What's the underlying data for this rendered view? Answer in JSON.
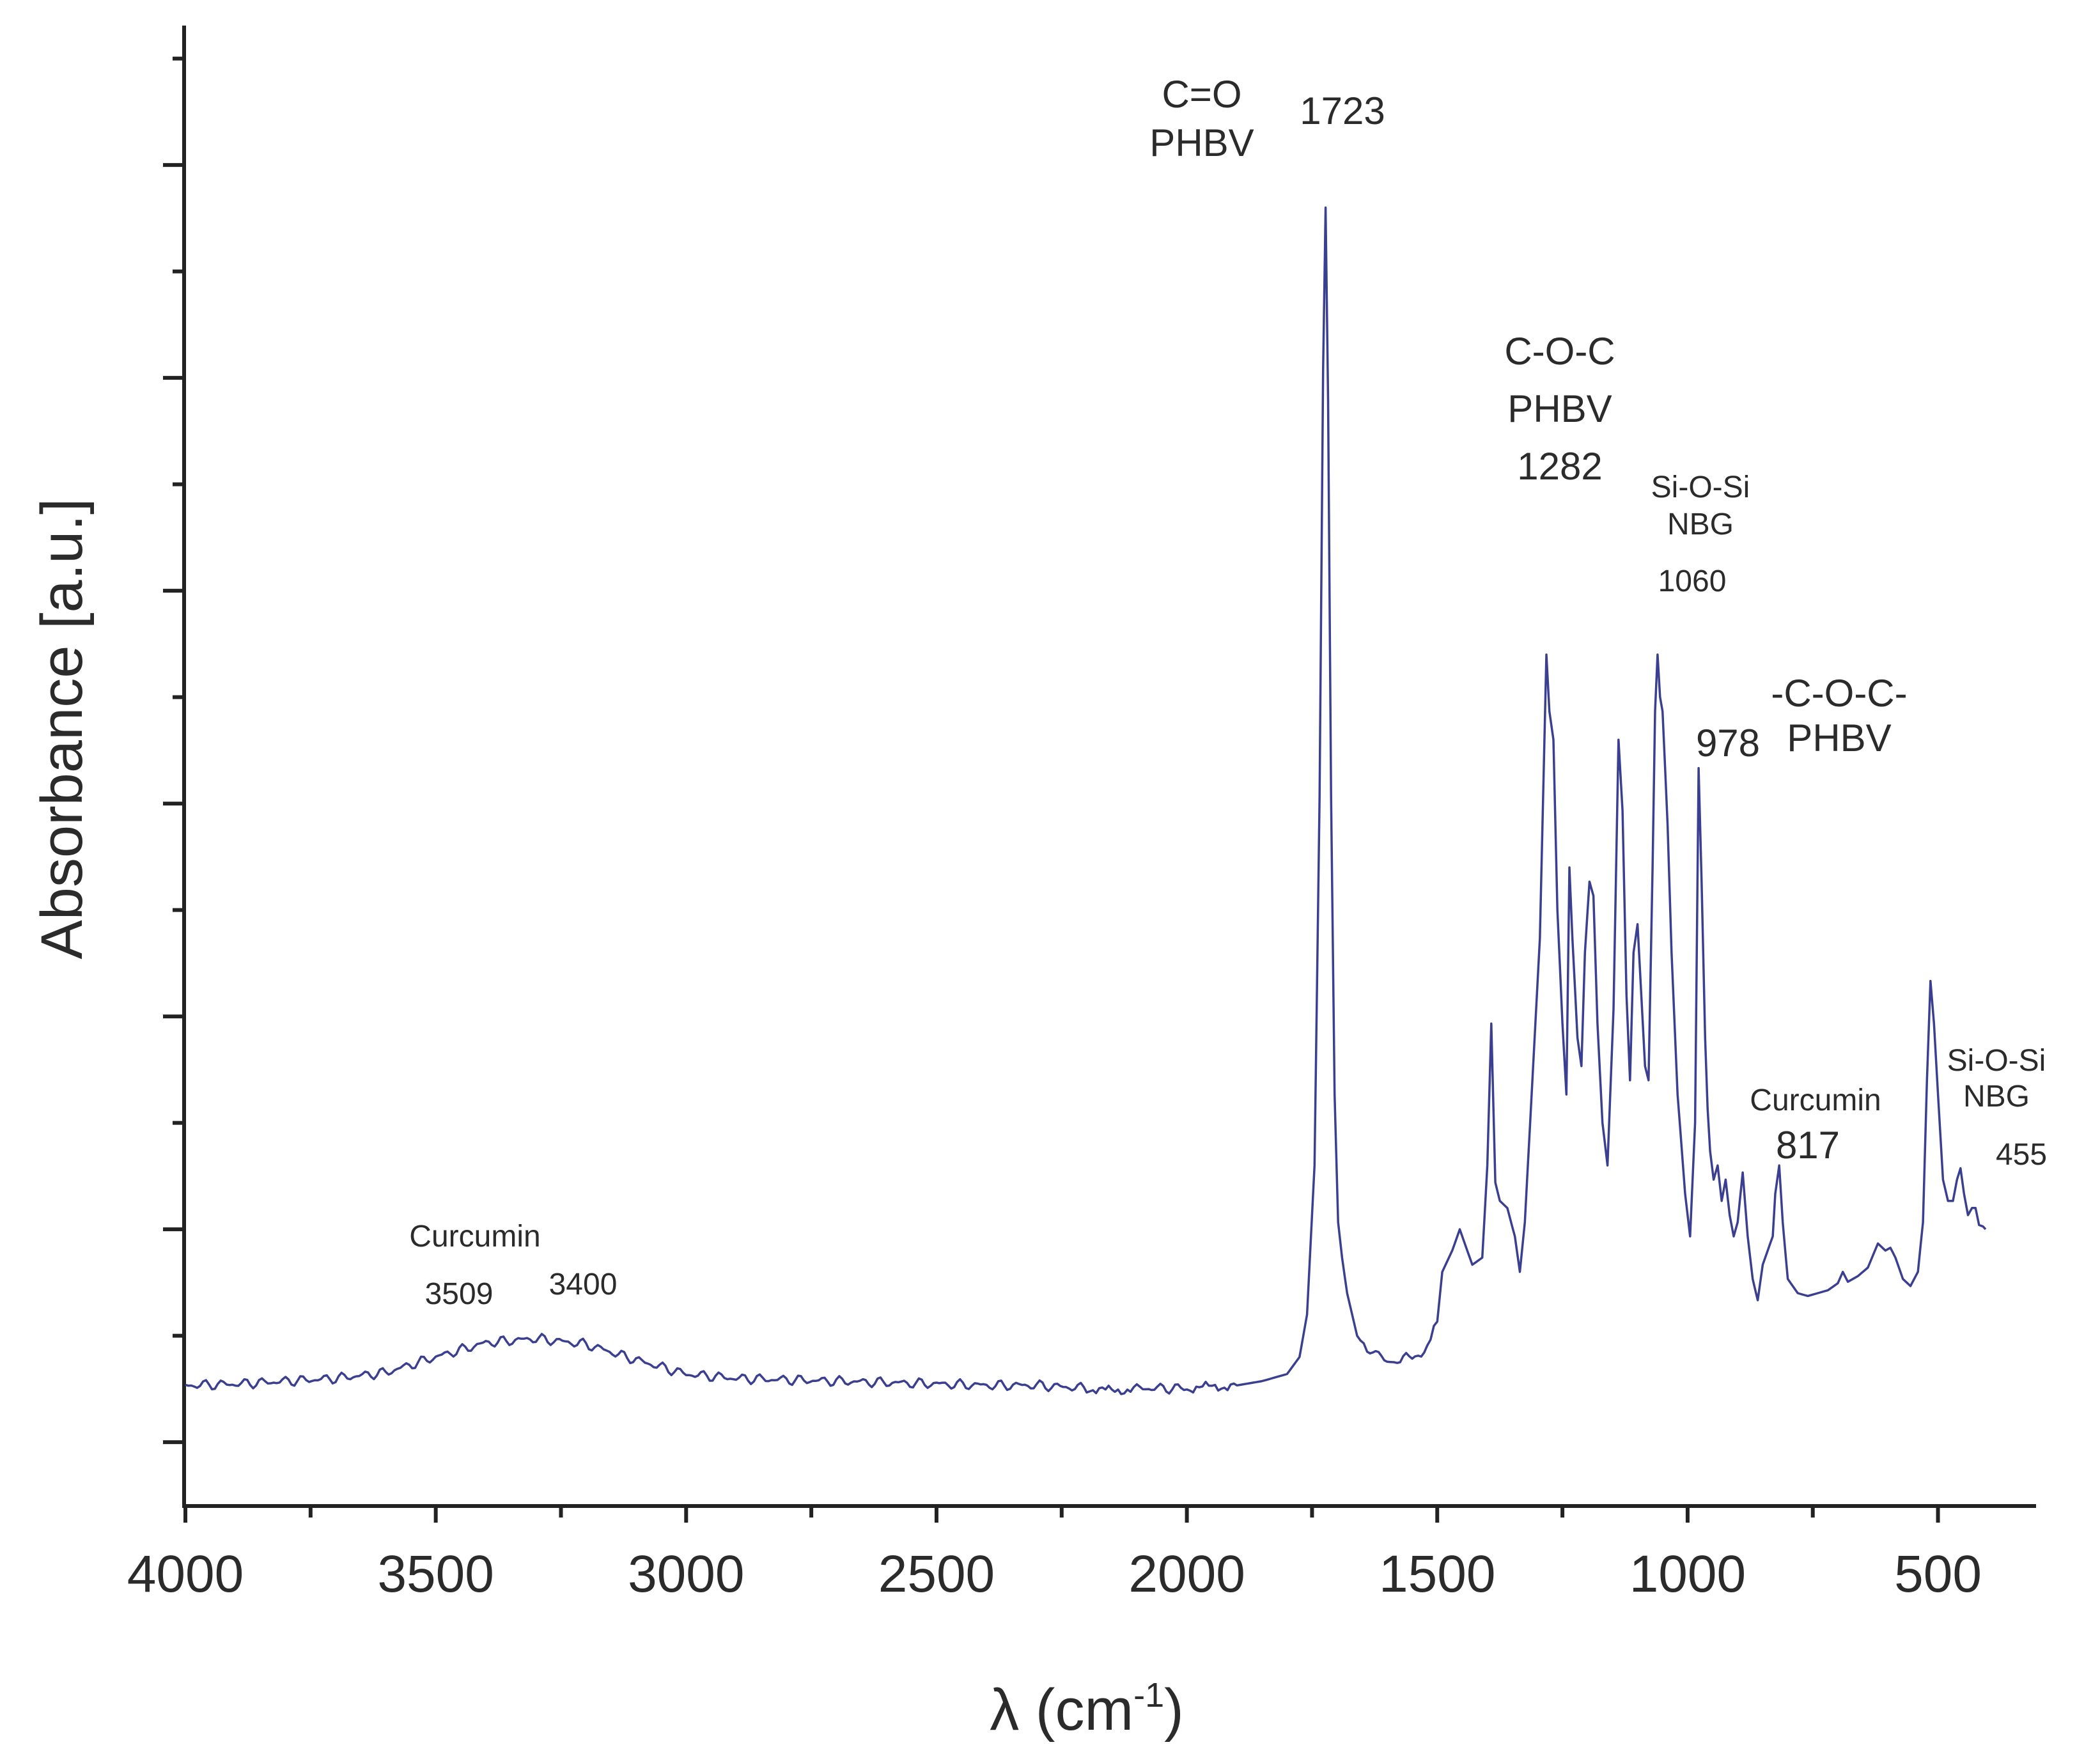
{
  "chart_data": {
    "type": "line",
    "title": "",
    "xlabel": "λ (cm",
    "xlabel_superscript": "-1",
    "xlabel_close": ")",
    "ylabel": "Absorbance [a.u.]",
    "xlim": [
      4000,
      330
    ],
    "ylim": [
      0,
      1.0
    ],
    "x_ticks": [
      4000,
      3500,
      3000,
      2500,
      2000,
      1500,
      1000,
      500
    ],
    "x_tick_labels": [
      "4000",
      "3500",
      "3000",
      "2500",
      "2000",
      "1500",
      "1000",
      "500"
    ],
    "y_tick_labels": [],
    "grid": false,
    "legend": "none",
    "series": [
      {
        "name": "Absorbance",
        "color": "#3b3f8f",
        "points": [
          [
            4000,
            0.085
          ],
          [
            3900,
            0.086
          ],
          [
            3800,
            0.088
          ],
          [
            3700,
            0.09
          ],
          [
            3600,
            0.094
          ],
          [
            3500,
            0.105
          ],
          [
            3400,
            0.115
          ],
          [
            3300,
            0.118
          ],
          [
            3200,
            0.114
          ],
          [
            3100,
            0.103
          ],
          [
            3000,
            0.093
          ],
          [
            2900,
            0.09
          ],
          [
            2800,
            0.089
          ],
          [
            2700,
            0.088
          ],
          [
            2600,
            0.087
          ],
          [
            2500,
            0.086
          ],
          [
            2400,
            0.085
          ],
          [
            2300,
            0.085
          ],
          [
            2200,
            0.083
          ],
          [
            2150,
            0.081
          ],
          [
            2100,
            0.083
          ],
          [
            2000,
            0.083
          ],
          [
            1950,
            0.084
          ],
          [
            1900,
            0.085
          ],
          [
            1850,
            0.088
          ],
          [
            1800,
            0.093
          ],
          [
            1775,
            0.105
          ],
          [
            1760,
            0.135
          ],
          [
            1745,
            0.24
          ],
          [
            1735,
            0.5
          ],
          [
            1728,
            0.8
          ],
          [
            1723,
            0.915
          ],
          [
            1718,
            0.78
          ],
          [
            1712,
            0.5
          ],
          [
            1705,
            0.29
          ],
          [
            1698,
            0.2
          ],
          [
            1690,
            0.175
          ],
          [
            1680,
            0.15
          ],
          [
            1660,
            0.12
          ],
          [
            1640,
            0.11
          ],
          [
            1600,
            0.104
          ],
          [
            1580,
            0.103
          ],
          [
            1550,
            0.105
          ],
          [
            1520,
            0.11
          ],
          [
            1500,
            0.13
          ],
          [
            1490,
            0.165
          ],
          [
            1470,
            0.18
          ],
          [
            1455,
            0.195
          ],
          [
            1445,
            0.185
          ],
          [
            1430,
            0.17
          ],
          [
            1410,
            0.175
          ],
          [
            1400,
            0.24
          ],
          [
            1392,
            0.34
          ],
          [
            1384,
            0.228
          ],
          [
            1375,
            0.215
          ],
          [
            1360,
            0.21
          ],
          [
            1345,
            0.19
          ],
          [
            1335,
            0.165
          ],
          [
            1325,
            0.2
          ],
          [
            1310,
            0.3
          ],
          [
            1295,
            0.4
          ],
          [
            1282,
            0.6
          ],
          [
            1276,
            0.56
          ],
          [
            1268,
            0.54
          ],
          [
            1260,
            0.42
          ],
          [
            1250,
            0.34
          ],
          [
            1242,
            0.29
          ],
          [
            1236,
            0.45
          ],
          [
            1230,
            0.4
          ],
          [
            1220,
            0.33
          ],
          [
            1212,
            0.31
          ],
          [
            1205,
            0.39
          ],
          [
            1196,
            0.44
          ],
          [
            1188,
            0.43
          ],
          [
            1180,
            0.34
          ],
          [
            1170,
            0.27
          ],
          [
            1160,
            0.24
          ],
          [
            1148,
            0.35
          ],
          [
            1138,
            0.54
          ],
          [
            1130,
            0.49
          ],
          [
            1122,
            0.36
          ],
          [
            1115,
            0.3
          ],
          [
            1108,
            0.39
          ],
          [
            1100,
            0.41
          ],
          [
            1094,
            0.37
          ],
          [
            1085,
            0.31
          ],
          [
            1078,
            0.3
          ],
          [
            1070,
            0.45
          ],
          [
            1065,
            0.56
          ],
          [
            1060,
            0.6
          ],
          [
            1055,
            0.57
          ],
          [
            1050,
            0.56
          ],
          [
            1045,
            0.52
          ],
          [
            1040,
            0.48
          ],
          [
            1032,
            0.39
          ],
          [
            1020,
            0.29
          ],
          [
            1005,
            0.22
          ],
          [
            995,
            0.19
          ],
          [
            985,
            0.27
          ],
          [
            978,
            0.52
          ],
          [
            972,
            0.44
          ],
          [
            965,
            0.33
          ],
          [
            960,
            0.28
          ],
          [
            955,
            0.25
          ],
          [
            948,
            0.23
          ],
          [
            940,
            0.24
          ],
          [
            932,
            0.215
          ],
          [
            924,
            0.23
          ],
          [
            916,
            0.205
          ],
          [
            908,
            0.19
          ],
          [
            900,
            0.2
          ],
          [
            890,
            0.235
          ],
          [
            880,
            0.19
          ],
          [
            870,
            0.16
          ],
          [
            860,
            0.145
          ],
          [
            850,
            0.17
          ],
          [
            840,
            0.18
          ],
          [
            830,
            0.19
          ],
          [
            825,
            0.22
          ],
          [
            817,
            0.24
          ],
          [
            810,
            0.2
          ],
          [
            800,
            0.16
          ],
          [
            780,
            0.15
          ],
          [
            760,
            0.148
          ],
          [
            740,
            0.15
          ],
          [
            720,
            0.152
          ],
          [
            700,
            0.157
          ],
          [
            690,
            0.165
          ],
          [
            680,
            0.158
          ],
          [
            660,
            0.162
          ],
          [
            640,
            0.168
          ],
          [
            620,
            0.185
          ],
          [
            605,
            0.18
          ],
          [
            595,
            0.182
          ],
          [
            585,
            0.175
          ],
          [
            570,
            0.16
          ],
          [
            555,
            0.155
          ],
          [
            540,
            0.165
          ],
          [
            530,
            0.2
          ],
          [
            522,
            0.3
          ],
          [
            515,
            0.37
          ],
          [
            508,
            0.34
          ],
          [
            500,
            0.29
          ],
          [
            490,
            0.23
          ],
          [
            480,
            0.215
          ],
          [
            470,
            0.215
          ],
          [
            462,
            0.23
          ],
          [
            455,
            0.238
          ],
          [
            448,
            0.22
          ],
          [
            440,
            0.205
          ],
          [
            432,
            0.21
          ],
          [
            425,
            0.21
          ],
          [
            418,
            0.198
          ],
          [
            410,
            0.197
          ],
          [
            405,
            0.195
          ]
        ]
      }
    ],
    "annotations": [
      {
        "lines": [
          "C=O",
          "PHBV"
        ],
        "size": "big"
      },
      {
        "lines": [
          "1723"
        ],
        "size": "big"
      },
      {
        "lines": [
          "C-O-C",
          "PHBV",
          "1282"
        ],
        "size": "big"
      },
      {
        "lines": [
          "Si-O-Si",
          "NBG"
        ],
        "size": "small"
      },
      {
        "lines": [
          "1060"
        ],
        "size": "small"
      },
      {
        "lines": [
          "978"
        ],
        "size": "big"
      },
      {
        "lines": [
          "-C-O-C-",
          "PHBV"
        ],
        "size": "big"
      },
      {
        "lines": [
          "Curcumin"
        ],
        "size": "small"
      },
      {
        "lines": [
          "817"
        ],
        "size": "big"
      },
      {
        "lines": [
          "Si-O-Si",
          "NBG"
        ],
        "size": "small"
      },
      {
        "lines": [
          "455"
        ],
        "size": "small"
      },
      {
        "lines": [
          "Curcumin"
        ],
        "size": "small"
      },
      {
        "lines": [
          "3509"
        ],
        "size": "small"
      },
      {
        "lines": [
          "3400"
        ],
        "size": "small"
      }
    ]
  }
}
